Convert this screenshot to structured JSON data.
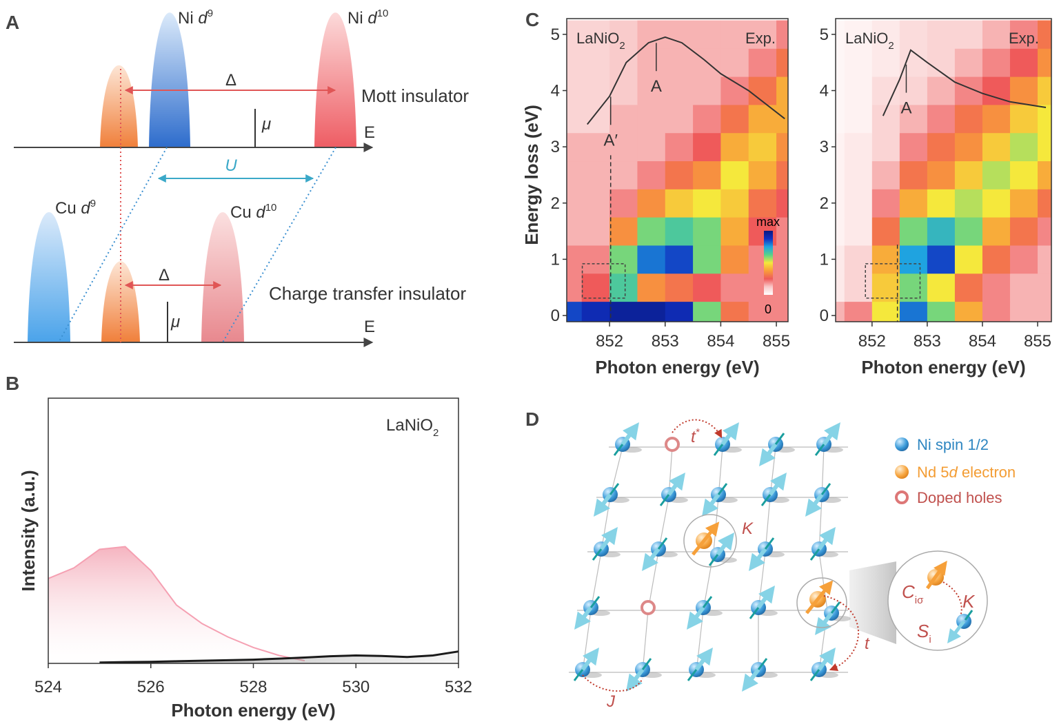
{
  "panels": {
    "a": "A",
    "b": "B",
    "c": "C",
    "d": "D"
  },
  "diagram_a": {
    "ni_d9": [
      "Ni ",
      "d",
      "9"
    ],
    "ni_d10": [
      "Ni ",
      "d",
      "10"
    ],
    "delta_top": "Δ",
    "mott": "Mott insulator",
    "mu_top": "μ",
    "e_top": "E",
    "u": "U",
    "cu_d9": [
      "Cu ",
      "d",
      "9"
    ],
    "cu_d10": [
      "Cu ",
      "d",
      "10"
    ],
    "delta_bottom": "Δ",
    "charge_transfer": "Charge transfer insulator",
    "mu_bottom": "μ",
    "e_bottom": "E"
  },
  "chart_data": [
    {
      "type": "line",
      "xlabel": "Photon energy (eV)",
      "ylabel": "Intensity (a.u.)",
      "annotation": [
        "LaNiO",
        "2"
      ],
      "xlim": [
        524,
        532
      ],
      "ylim": [
        0,
        1
      ],
      "xticks": [
        524,
        526,
        528,
        530,
        532
      ],
      "x": [
        524,
        524.5,
        525,
        525.5,
        526,
        526.5,
        527,
        527.5,
        528,
        528.5,
        529,
        529.5,
        530,
        530.5,
        531,
        531.5,
        532
      ],
      "series": [
        {
          "color": "#f5a0b2",
          "values": [
            0.32,
            0.36,
            0.43,
            0.44,
            0.35,
            0.22,
            0.15,
            0.1,
            0.06,
            0.03,
            0.01,
            null,
            null,
            null,
            null,
            null,
            null
          ]
        },
        {
          "color": "#1a1a1a",
          "values": [
            null,
            null,
            0.003,
            0.005,
            0.006,
            0.008,
            0.01,
            0.012,
            0.014,
            0.018,
            0.022,
            0.027,
            0.03,
            0.028,
            0.024,
            0.03,
            0.045
          ]
        }
      ]
    },
    {
      "type": "heatmap",
      "xlabel": "Photon energy (eV)",
      "ylabel": "Energy loss (eV)",
      "sample": [
        "LaNiO",
        "2"
      ],
      "label": "Exp.",
      "xlim": [
        851.23,
        855.21
      ],
      "ylim": [
        -0.11,
        5.28
      ],
      "xticks": [
        852,
        853,
        854,
        855
      ],
      "yticks": [
        0,
        1,
        2,
        3,
        4,
        5
      ],
      "zlim": [
        0,
        1
      ],
      "colormap": [
        "#ffffff",
        "#f9c9c9",
        "#ef5a5a",
        "#f99d3a",
        "#f5e83c",
        "#58d18b",
        "#1fa3e0",
        "#1030c0",
        "#0a1880"
      ],
      "colorbar": {
        "ticks": [
          0,
          {
            "value": 1,
            "label": "max"
          }
        ]
      },
      "x_edges": [
        851.0,
        851.5,
        852.0,
        852.5,
        853.0,
        853.5,
        854.0,
        854.5,
        855.0,
        855.5
      ],
      "y_edges": [
        -0.25,
        0.25,
        0.75,
        1.25,
        1.75,
        2.25,
        2.75,
        3.25,
        3.75,
        4.25,
        4.75,
        5.25
      ],
      "z": [
        [
          0.85,
          0.9,
          0.95,
          0.95,
          0.9,
          0.6,
          0.3,
          0.2,
          0.2
        ],
        [
          0.2,
          0.25,
          0.65,
          0.35,
          0.3,
          0.25,
          0.2,
          0.2,
          0.2
        ],
        [
          0.2,
          0.2,
          0.6,
          0.8,
          0.85,
          0.6,
          0.35,
          0.2,
          0.2
        ],
        [
          0.15,
          0.15,
          0.35,
          0.6,
          0.65,
          0.6,
          0.4,
          0.25,
          0.2
        ],
        [
          0.15,
          0.15,
          0.2,
          0.35,
          0.45,
          0.5,
          0.45,
          0.3,
          0.25
        ],
        [
          0.15,
          0.15,
          0.15,
          0.2,
          0.3,
          0.35,
          0.5,
          0.4,
          0.3
        ],
        [
          0.15,
          0.15,
          0.15,
          0.15,
          0.2,
          0.25,
          0.4,
          0.45,
          0.35
        ],
        [
          0.1,
          0.1,
          0.15,
          0.15,
          0.15,
          0.2,
          0.3,
          0.4,
          0.4
        ],
        [
          0.1,
          0.1,
          0.12,
          0.15,
          0.15,
          0.15,
          0.2,
          0.3,
          0.4
        ],
        [
          0.1,
          0.1,
          0.12,
          0.15,
          0.15,
          0.15,
          0.15,
          0.2,
          0.3
        ],
        [
          0.1,
          0.1,
          0.12,
          0.15,
          0.15,
          0.15,
          0.15,
          0.15,
          0.2
        ]
      ],
      "curve": {
        "color": "#333333",
        "x": [
          851.6,
          852,
          852.3,
          852.7,
          853,
          853.3,
          853.7,
          854,
          854.5,
          855.15
        ],
        "values": [
          3.4,
          3.9,
          4.5,
          4.85,
          4.95,
          4.85,
          4.55,
          4.3,
          4.0,
          3.5
        ]
      },
      "markers": [
        {
          "label": "A′",
          "x": 852.02
        },
        {
          "label": "A",
          "x": 852.84
        }
      ],
      "guide_x": 852.02,
      "guide_top": 2.85,
      "box": {
        "x": [
          851.51,
          852.28
        ],
        "y": [
          0.31,
          0.92
        ]
      }
    },
    {
      "type": "heatmap",
      "xlabel": "Photon energy (eV)",
      "sample": [
        "LaNiO",
        "2"
      ],
      "label": "Exp.",
      "xlim": [
        851.34,
        855.25
      ],
      "ylim": [
        -0.11,
        5.28
      ],
      "xticks": [
        852,
        853,
        854,
        855
      ],
      "yticks": [
        0,
        1,
        2,
        3,
        4,
        5
      ],
      "zlim": [
        0,
        1
      ],
      "colormap": [
        "#ffffff",
        "#f9c9c9",
        "#ef5a5a",
        "#f99d3a",
        "#f5e83c",
        "#58d18b",
        "#1fa3e0",
        "#1030c0",
        "#0a1880"
      ],
      "x_edges": [
        851.0,
        851.5,
        852.0,
        852.5,
        853.0,
        853.5,
        854.0,
        854.5,
        855.0,
        855.5
      ],
      "y_edges": [
        -0.25,
        0.25,
        0.75,
        1.25,
        1.75,
        2.25,
        2.75,
        3.25,
        3.75,
        4.25,
        4.75,
        5.25
      ],
      "z": [
        [
          0.15,
          0.2,
          0.5,
          0.8,
          0.6,
          0.4,
          0.2,
          0.15,
          0.15
        ],
        [
          0.05,
          0.1,
          0.45,
          0.6,
          0.5,
          0.3,
          0.2,
          0.15,
          0.15
        ],
        [
          0.05,
          0.1,
          0.4,
          0.75,
          0.85,
          0.5,
          0.3,
          0.2,
          0.15
        ],
        [
          0.03,
          0.05,
          0.3,
          0.6,
          0.7,
          0.6,
          0.4,
          0.3,
          0.2
        ],
        [
          0.03,
          0.05,
          0.2,
          0.4,
          0.5,
          0.55,
          0.5,
          0.4,
          0.3
        ],
        [
          0.03,
          0.05,
          0.15,
          0.3,
          0.35,
          0.45,
          0.55,
          0.5,
          0.4
        ],
        [
          0.03,
          0.05,
          0.1,
          0.2,
          0.3,
          0.35,
          0.45,
          0.55,
          0.5
        ],
        [
          0.02,
          0.03,
          0.1,
          0.15,
          0.2,
          0.3,
          0.35,
          0.45,
          0.5
        ],
        [
          0.02,
          0.03,
          0.08,
          0.1,
          0.15,
          0.2,
          0.25,
          0.35,
          0.45
        ],
        [
          0.02,
          0.03,
          0.05,
          0.08,
          0.1,
          0.15,
          0.2,
          0.25,
          0.35
        ],
        [
          0.02,
          0.03,
          0.05,
          0.08,
          0.1,
          0.1,
          0.15,
          0.2,
          0.3
        ]
      ],
      "curve": {
        "color": "#333333",
        "x": [
          852.2,
          852.5,
          852.7,
          853,
          853.5,
          854,
          854.5,
          855.15
        ],
        "values": [
          3.55,
          4.2,
          4.72,
          4.5,
          4.15,
          3.95,
          3.8,
          3.7
        ]
      },
      "markers": [
        {
          "label": "A",
          "x": 852.62
        }
      ],
      "guide_x": 852.46,
      "guide_top": 1.26,
      "box": {
        "x": [
          851.88,
          852.87
        ],
        "y": [
          0.31,
          0.92
        ]
      }
    }
  ],
  "diagram_d": {
    "t_star": [
      "t",
      "*"
    ],
    "k_top": "K",
    "j": "J",
    "t": "t",
    "c_i_sigma": [
      "C",
      "iσ"
    ],
    "k_zoom": "K",
    "s_i": [
      "S",
      "i"
    ],
    "legend": {
      "ni_spin": "Ni spin 1/2",
      "nd_electron": [
        "Nd 5",
        "d",
        " electron"
      ],
      "doped_holes": "Doped holes"
    }
  }
}
